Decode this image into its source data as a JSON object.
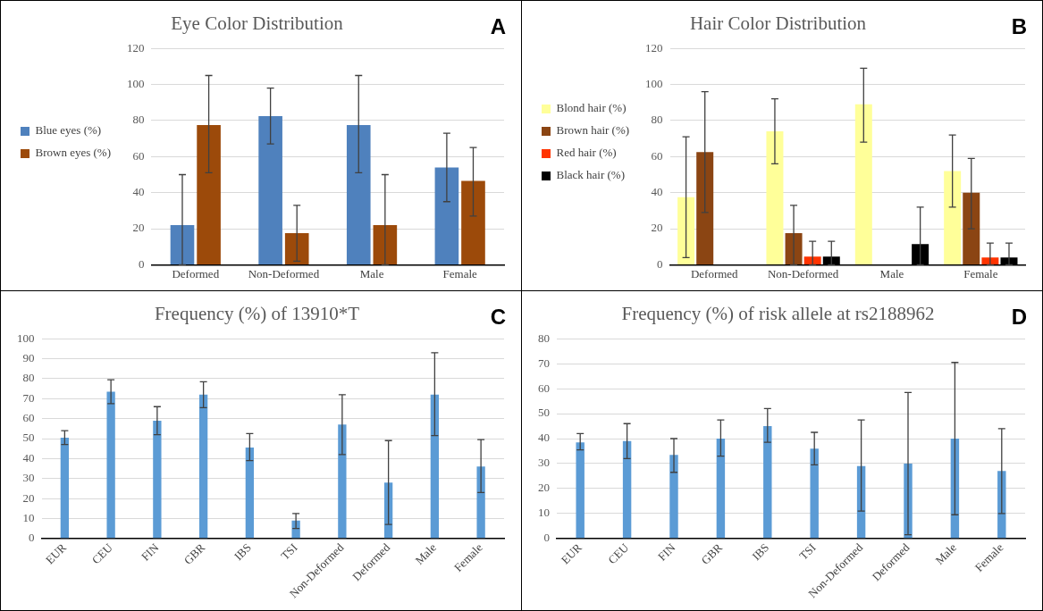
{
  "chart_data": [
    {
      "type": "bar",
      "title": "Eye Color Distribution",
      "annotations": [
        "A"
      ],
      "categories": [
        "Deformed",
        "Non-Deformed",
        "Male",
        "Female"
      ],
      "series": [
        {
          "name": "Blue eyes (%)",
          "color": "#4f81bd",
          "values": [
            22,
            82.5,
            77.5,
            54
          ],
          "errors": [
            [
              0,
              50
            ],
            [
              67,
              98
            ],
            [
              51,
              105
            ],
            [
              35,
              73
            ]
          ]
        },
        {
          "name": "Brown eyes (%)",
          "color": "#9c4a0a",
          "values": [
            77.5,
            17.5,
            22,
            46.5
          ],
          "errors": [
            [
              51,
              105
            ],
            [
              2,
              33
            ],
            [
              0,
              50
            ],
            [
              27,
              65
            ]
          ]
        }
      ],
      "ylim": [
        0,
        120
      ],
      "yticks": [
        0,
        20,
        40,
        60,
        80,
        100,
        120
      ],
      "grid": "y",
      "legend": "left"
    },
    {
      "type": "bar",
      "title": "Hair Color Distribution",
      "annotations": [
        "B"
      ],
      "categories": [
        "Deformed",
        "Non-Deformed",
        "Male",
        "Female"
      ],
      "series": [
        {
          "name": "Blond hair (%)",
          "color": "#ffff99",
          "values": [
            37.5,
            74,
            89,
            52
          ],
          "errors": [
            [
              4,
              71
            ],
            [
              56,
              92
            ],
            [
              68,
              109
            ],
            [
              32,
              72
            ]
          ]
        },
        {
          "name": "Brown hair (%)",
          "color": "#8b4513",
          "values": [
            62.5,
            17.5,
            null,
            40
          ],
          "errors": [
            [
              29,
              96
            ],
            [
              0,
              33
            ],
            null,
            [
              20,
              59
            ]
          ]
        },
        {
          "name": "Red hair (%)",
          "color": "#ff3300",
          "values": [
            null,
            4.5,
            null,
            4
          ],
          "errors": [
            null,
            [
              0,
              13
            ],
            null,
            [
              0,
              12
            ]
          ]
        },
        {
          "name": "Black hair (%)",
          "color": "#000000",
          "values": [
            null,
            4.5,
            11.5,
            4
          ],
          "errors": [
            null,
            [
              0,
              13
            ],
            [
              0,
              32
            ],
            [
              0,
              12
            ]
          ]
        }
      ],
      "ylim": [
        0,
        120
      ],
      "yticks": [
        0,
        20,
        40,
        60,
        80,
        100,
        120
      ],
      "grid": "y",
      "legend": "left"
    },
    {
      "type": "bar",
      "title": "Frequency (%) of 13910*T",
      "annotations": [
        "C"
      ],
      "categories": [
        "EUR",
        "CEU",
        "FIN",
        "GBR",
        "IBS",
        "TSI",
        "Non-Deformed",
        "Deformed",
        "Male",
        "Female"
      ],
      "values": [
        50.5,
        73.5,
        59,
        72,
        45.5,
        9,
        57,
        28,
        72,
        36
      ],
      "color": "#5b9bd5",
      "errors": [
        [
          47,
          54
        ],
        [
          67.5,
          79.5
        ],
        [
          52,
          66
        ],
        [
          65.5,
          78.5
        ],
        [
          39,
          52.5
        ],
        [
          5,
          12.5
        ],
        [
          42,
          72
        ],
        [
          7,
          49
        ],
        [
          51.5,
          93
        ],
        [
          23,
          49.5
        ]
      ],
      "ylim": [
        0,
        100
      ],
      "yticks": [
        0,
        10,
        20,
        30,
        40,
        50,
        60,
        70,
        80,
        90,
        100
      ],
      "grid": "y"
    },
    {
      "type": "bar",
      "title": "Frequency (%) of risk allele at rs2188962",
      "annotations": [
        "D"
      ],
      "categories": [
        "EUR",
        "CEU",
        "FIN",
        "GBR",
        "IBS",
        "TSI",
        "Non-Deformed",
        "Deformed",
        "Male",
        "Female"
      ],
      "values": [
        38.5,
        39,
        33.5,
        40,
        45,
        36,
        29,
        30,
        40,
        27
      ],
      "color": "#5b9bd5",
      "errors": [
        [
          35.5,
          42
        ],
        [
          32,
          46
        ],
        [
          26.5,
          40
        ],
        [
          33,
          47.5
        ],
        [
          38.5,
          52
        ],
        [
          29.5,
          42.5
        ],
        [
          11,
          47.5
        ],
        [
          1.5,
          58.5
        ],
        [
          9.5,
          70.5
        ],
        [
          10,
          44
        ]
      ],
      "ylim": [
        0,
        80
      ],
      "yticks": [
        0,
        10,
        20,
        30,
        40,
        50,
        60,
        70,
        80
      ],
      "grid": "y"
    }
  ]
}
